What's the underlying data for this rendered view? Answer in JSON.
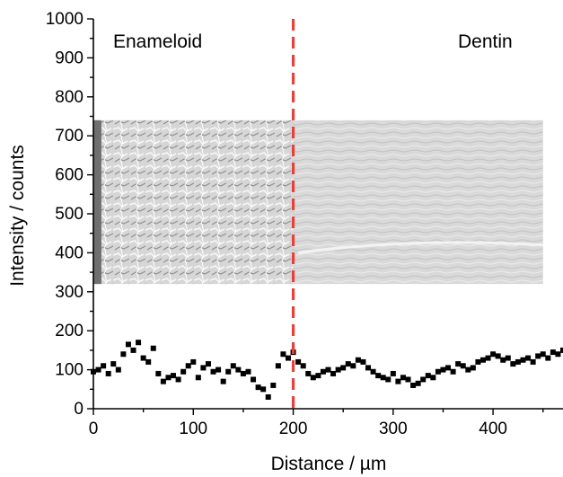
{
  "chart_data": {
    "type": "scatter",
    "title": "",
    "xlabel": "Distance / µm",
    "ylabel": "Intensity / counts",
    "xlim": [
      0,
      470
    ],
    "ylim": [
      0,
      1000
    ],
    "x_ticks": [
      0,
      100,
      200,
      300,
      400
    ],
    "y_ticks": [
      0,
      100,
      200,
      300,
      400,
      500,
      600,
      700,
      800,
      900,
      1000
    ],
    "marker": "square",
    "marker_color": "#000000",
    "boundary_line": {
      "x": 200,
      "color": "#e8403a",
      "style": "dashed"
    },
    "inset_image": {
      "description_region": "SEM micrograph",
      "x_range": [
        0,
        450
      ],
      "y_range": [
        320,
        740
      ]
    },
    "annotations": [
      "Enameloid",
      "Dentin"
    ],
    "grid": false,
    "series": [
      {
        "x": [
          0,
          5,
          10,
          15,
          20,
          25,
          30,
          35,
          40,
          45,
          50,
          55,
          60,
          65,
          70,
          75,
          80,
          85,
          90,
          95,
          100,
          105,
          110,
          115,
          120,
          125,
          130,
          135,
          140,
          145,
          150,
          155,
          160,
          165,
          170,
          175,
          180,
          185,
          190,
          195,
          200,
          205,
          210,
          215,
          220,
          225,
          230,
          235,
          240,
          245,
          250,
          255,
          260,
          265,
          270,
          275,
          280,
          285,
          290,
          295,
          300,
          305,
          310,
          315,
          320,
          325,
          330,
          335,
          340,
          345,
          350,
          355,
          360,
          365,
          370,
          375,
          380,
          385,
          390,
          395,
          400,
          405,
          410,
          415,
          420,
          425,
          430,
          435,
          440,
          445,
          450,
          455,
          460,
          465,
          470
        ],
        "y": [
          95,
          100,
          110,
          90,
          115,
          100,
          140,
          165,
          150,
          170,
          130,
          120,
          155,
          90,
          70,
          80,
          85,
          75,
          95,
          110,
          120,
          80,
          105,
          115,
          95,
          100,
          70,
          95,
          110,
          100,
          90,
          95,
          75,
          55,
          50,
          30,
          60,
          110,
          140,
          130,
          145,
          120,
          110,
          90,
          80,
          85,
          95,
          100,
          90,
          100,
          105,
          115,
          110,
          125,
          120,
          105,
          95,
          85,
          80,
          75,
          90,
          70,
          80,
          75,
          60,
          65,
          75,
          85,
          80,
          95,
          100,
          105,
          95,
          115,
          110,
          100,
          105,
          120,
          125,
          130,
          140,
          135,
          125,
          130,
          115,
          120,
          125,
          130,
          120,
          135,
          140,
          130,
          145,
          140,
          150
        ]
      }
    ]
  }
}
